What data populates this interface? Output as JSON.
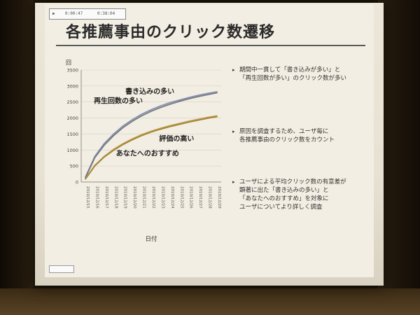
{
  "slide": {
    "title": "各推薦事由のクリック数遷移",
    "player_time_left": "0:00:47",
    "player_time_right": "0:38:04"
  },
  "bullets": [
    {
      "lines": [
        "期間中一貫して「書き込みが多い」と",
        "「再生回数が多い」のクリック数が多い"
      ]
    },
    {
      "lines": [
        "原因を調査するため、ユーザ毎に",
        "各推薦事由のクリック数をカウント"
      ]
    },
    {
      "lines": [
        "ユーザによる平均クリック数の有意差が",
        "顕著に出た「書き込みの多い」と",
        "「あなたへのおすすめ」を対象に",
        "ユーザについてより詳しく調査"
      ]
    }
  ],
  "colors": {
    "series_blue": "#8191b8",
    "series_gray": "#7a7a7a",
    "series_tan": "#c19a52",
    "series_olive": "#a08a3a"
  },
  "chart_data": {
    "type": "line",
    "ylabel": "回",
    "xlabel": "日付",
    "ylim": [
      0,
      3500
    ],
    "yticks": [
      "3500",
      "3000",
      "2500",
      "2000",
      "1500",
      "1000",
      "500",
      "0"
    ],
    "x": [
      "2010/12/15",
      "2010/12/16",
      "2010/12/17",
      "2010/12/18",
      "2010/12/19",
      "2010/12/20",
      "2010/12/21",
      "2010/12/22",
      "2010/12/23",
      "2010/12/24",
      "2010/12/25",
      "2010/12/26",
      "2010/12/27",
      "2010/12/28",
      "2010/12/29"
    ],
    "series": [
      {
        "name": "書き込みの多い",
        "color": "#8191b8",
        "values": [
          150,
          800,
          1200,
          1500,
          1750,
          1950,
          2120,
          2260,
          2380,
          2480,
          2560,
          2640,
          2710,
          2770,
          2820
        ]
      },
      {
        "name": "再生回数の多い",
        "color": "#7a7a7a",
        "values": [
          130,
          760,
          1150,
          1450,
          1700,
          1900,
          2070,
          2210,
          2330,
          2430,
          2520,
          2600,
          2670,
          2730,
          2790
        ]
      },
      {
        "name": "評価の高い",
        "color": "#c19a52",
        "values": [
          100,
          520,
          800,
          1020,
          1200,
          1350,
          1480,
          1590,
          1680,
          1760,
          1830,
          1900,
          1960,
          2020,
          2070
        ]
      },
      {
        "name": "あなたへのおすすめ",
        "color": "#a08a3a",
        "values": [
          90,
          500,
          780,
          990,
          1170,
          1320,
          1450,
          1560,
          1650,
          1730,
          1800,
          1870,
          1930,
          1990,
          2040
        ]
      }
    ],
    "annotations": [
      {
        "text": "書き込みの多い",
        "series": "書き込みの多い"
      },
      {
        "text": "再生回数の多い",
        "series": "再生回数の多い"
      },
      {
        "text": "評価の高い",
        "series": "評価の高い"
      },
      {
        "text": "あなたへのおすすめ",
        "series": "あなたへのおすすめ"
      }
    ]
  }
}
